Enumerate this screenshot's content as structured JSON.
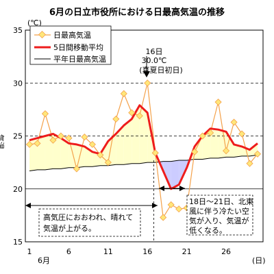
{
  "chart_data": {
    "type": "line",
    "title": "6月の日立市役所における日最高気温の推移",
    "y_unit": "(℃)",
    "ylabel": "気温",
    "x_unit": "(日)",
    "x_month_label": "6月",
    "xlim": [
      1,
      30
    ],
    "ylim": [
      15,
      35
    ],
    "x_ticks": [
      1,
      6,
      11,
      16,
      21,
      26
    ],
    "y_ticks": [
      15,
      20,
      25,
      30,
      35
    ],
    "grid": "dashed-horizontal",
    "legend_position": "top-left",
    "colors": {
      "daily_max": "#f4a14a",
      "daily_max_marker_fill": "#ffe77a",
      "moving_avg": "#ee1c1c",
      "normal": "#000000",
      "fill_above_normal": "#ffffcc",
      "fill_below_normal": "#ccccff"
    },
    "x": [
      1,
      2,
      3,
      4,
      5,
      6,
      7,
      8,
      9,
      10,
      11,
      12,
      13,
      14,
      15,
      16,
      17,
      18,
      19,
      20,
      21,
      22,
      23,
      24,
      25,
      26,
      27,
      28,
      29,
      30
    ],
    "series": [
      {
        "name": "日最高気温",
        "values": [
          24.2,
          24.3,
          27.1,
          24.6,
          25.0,
          24.8,
          21.9,
          24.9,
          24.2,
          23.2,
          22.5,
          26.6,
          29.0,
          27.2,
          26.9,
          30.0,
          23.4,
          17.3,
          18.5,
          18.1,
          18.2,
          23.5,
          25.0,
          25.3,
          28.2,
          23.6,
          26.3,
          25.2,
          22.4,
          23.3
        ]
      },
      {
        "name": "5日間移動平均",
        "values": [
          24.6,
          24.8,
          25.0,
          25.2,
          24.8,
          24.3,
          24.2,
          24.0,
          23.5,
          23.3,
          24.5,
          25.2,
          26.0,
          26.6,
          27.9,
          27.2,
          23.4,
          21.7,
          20.0,
          20.4,
          22.0,
          24.0,
          25.0,
          25.7,
          25.6,
          25.4,
          24.2,
          24.0,
          23.7,
          24.3
        ]
      },
      {
        "name": "平年日最高気温",
        "values": [
          21.7,
          21.8,
          21.8,
          21.9,
          21.9,
          22.0,
          22.0,
          22.1,
          22.1,
          22.2,
          22.2,
          22.3,
          22.3,
          22.4,
          22.4,
          22.5,
          22.5,
          22.6,
          22.6,
          22.7,
          22.7,
          22.8,
          22.8,
          22.9,
          22.9,
          23.0,
          23.0,
          23.1,
          23.1,
          23.2
        ]
      }
    ],
    "annotations": {
      "day16_line1": "16日",
      "day16_line2": "30.0℃",
      "day16_line3": "(真夏日初日)",
      "box_left_line1": "高気圧におおわれ、晴れて",
      "box_left_line2": "気温が上がる。",
      "box_right_line1": "18日～21日、北東",
      "box_right_line2": "風に伴う冷たい空",
      "box_right_line3": "気が入り、気温が",
      "box_right_line4": "低くなる。"
    }
  }
}
